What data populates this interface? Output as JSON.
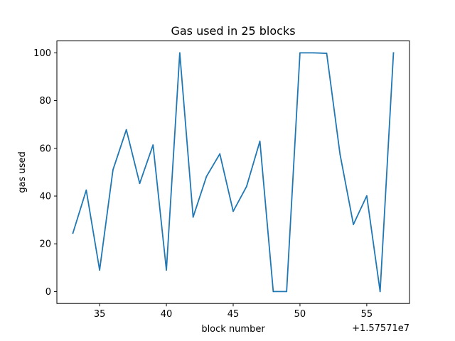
{
  "chart_data": {
    "type": "line",
    "title": "Gas used in 25 blocks",
    "xlabel": "block number",
    "ylabel": "gas used",
    "x_offset_label": "+1.57571e7",
    "x_tick_labels": [
      "35",
      "40",
      "45",
      "50",
      "55"
    ],
    "y_tick_labels": [
      "0",
      "20",
      "40",
      "60",
      "80",
      "100"
    ],
    "x_ticks": [
      35,
      40,
      45,
      50,
      55
    ],
    "y_ticks": [
      0,
      20,
      40,
      60,
      80,
      100
    ],
    "xlim": [
      31.8,
      58.2
    ],
    "ylim": [
      -5,
      105
    ],
    "grid": false,
    "series": [
      {
        "color": "#1f77b4",
        "x": [
          33,
          34,
          35,
          36,
          37,
          38,
          39,
          40,
          41,
          42,
          43,
          44,
          45,
          46,
          47,
          48,
          49,
          50,
          51,
          52,
          53,
          54,
          55,
          56,
          57
        ],
        "y": [
          24.5,
          42.5,
          9,
          51,
          67.8,
          45.3,
          61.4,
          9,
          100,
          31.2,
          48.2,
          57.7,
          33.6,
          44,
          63,
          0,
          0,
          100,
          100,
          99.8,
          57.5,
          28.1,
          40.1,
          0,
          100
        ]
      }
    ]
  }
}
